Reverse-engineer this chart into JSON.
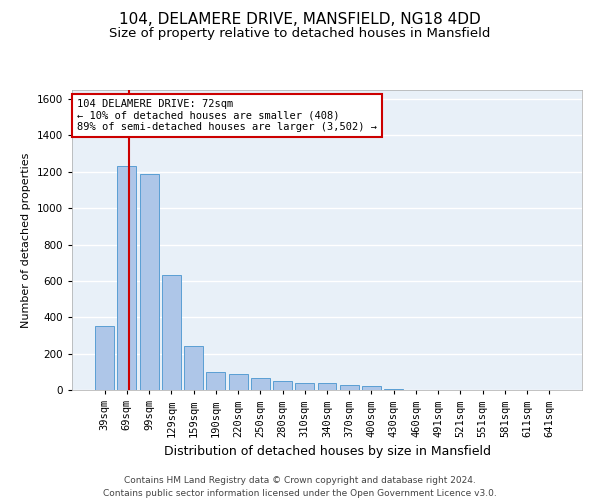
{
  "title1": "104, DELAMERE DRIVE, MANSFIELD, NG18 4DD",
  "title2": "Size of property relative to detached houses in Mansfield",
  "xlabel": "Distribution of detached houses by size in Mansfield",
  "ylabel": "Number of detached properties",
  "categories": [
    "39sqm",
    "69sqm",
    "99sqm",
    "129sqm",
    "159sqm",
    "190sqm",
    "220sqm",
    "250sqm",
    "280sqm",
    "310sqm",
    "340sqm",
    "370sqm",
    "400sqm",
    "430sqm",
    "460sqm",
    "491sqm",
    "521sqm",
    "551sqm",
    "581sqm",
    "611sqm",
    "641sqm"
  ],
  "values": [
    350,
    1230,
    1190,
    635,
    240,
    100,
    90,
    65,
    50,
    38,
    38,
    28,
    22,
    8,
    0,
    0,
    0,
    0,
    0,
    0,
    0
  ],
  "bar_color": "#aec6e8",
  "bar_edge_color": "#5a9fd4",
  "annotation_text": "104 DELAMERE DRIVE: 72sqm\n← 10% of detached houses are smaller (408)\n89% of semi-detached houses are larger (3,502) →",
  "annotation_box_color": "#ffffff",
  "annotation_box_edge": "#cc0000",
  "vline_x": 1.1,
  "ylim": [
    0,
    1650
  ],
  "yticks": [
    0,
    200,
    400,
    600,
    800,
    1000,
    1200,
    1400,
    1600
  ],
  "bg_color": "#e8f0f8",
  "footer": "Contains HM Land Registry data © Crown copyright and database right 2024.\nContains public sector information licensed under the Open Government Licence v3.0.",
  "title1_fontsize": 11,
  "title2_fontsize": 9.5,
  "ylabel_fontsize": 8,
  "xlabel_fontsize": 9,
  "tick_fontsize": 7.5,
  "footer_fontsize": 6.5,
  "bar_width": 0.85
}
